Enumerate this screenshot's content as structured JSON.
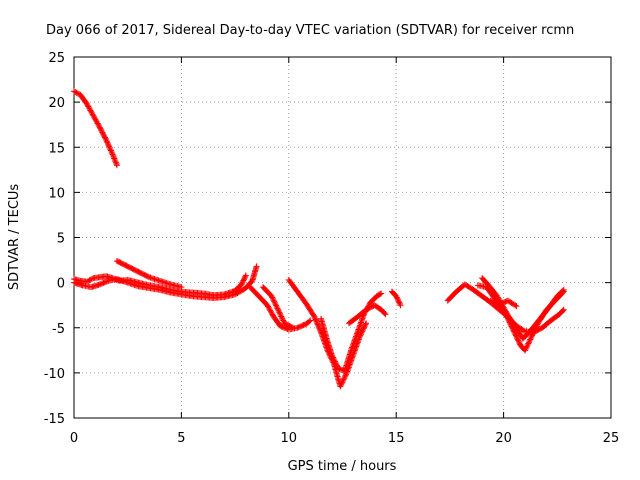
{
  "chart_data": {
    "type": "scatter",
    "title": "Day 066 of 2017, Sidereal Day-to-day VTEC variation (SDTVAR) for receiver rcmn",
    "xlabel": "GPS time / hours",
    "ylabel": "SDTVAR / TECUs",
    "xlim": [
      0,
      25
    ],
    "ylim": [
      -15,
      25
    ],
    "xticks": [
      0,
      5,
      10,
      15,
      20,
      25
    ],
    "yticks": [
      -15,
      -10,
      -5,
      0,
      5,
      10,
      15,
      20,
      25
    ],
    "grid": true,
    "marker": "+",
    "series": [
      {
        "name": "seg1",
        "color": "#ff0000",
        "points": [
          [
            0.0,
            21.2
          ],
          [
            0.3,
            20.8
          ],
          [
            0.6,
            19.8
          ],
          [
            0.9,
            18.5
          ],
          [
            1.2,
            17.2
          ],
          [
            1.5,
            15.8
          ],
          [
            1.8,
            14.2
          ],
          [
            2.0,
            13.0
          ]
        ]
      },
      {
        "name": "seg2",
        "color": "#ff0000",
        "points": [
          [
            0.0,
            0.4
          ],
          [
            0.3,
            0.2
          ],
          [
            0.6,
            0.1
          ],
          [
            0.9,
            0.5
          ],
          [
            1.2,
            0.6
          ],
          [
            1.5,
            0.7
          ],
          [
            1.8,
            0.5
          ],
          [
            2.1,
            0.2
          ],
          [
            2.5,
            0.3
          ],
          [
            3.0,
            0.0
          ],
          [
            3.5,
            -0.3
          ],
          [
            4.0,
            -0.5
          ],
          [
            4.5,
            -0.8
          ],
          [
            5.0,
            -1.0
          ],
          [
            5.5,
            -1.1
          ],
          [
            6.0,
            -1.2
          ],
          [
            6.5,
            -1.4
          ],
          [
            7.0,
            -1.3
          ],
          [
            7.5,
            -0.9
          ],
          [
            7.8,
            -0.2
          ],
          [
            8.0,
            0.8
          ]
        ]
      },
      {
        "name": "seg3",
        "color": "#ff0000",
        "points": [
          [
            0.0,
            0.0
          ],
          [
            0.4,
            -0.3
          ],
          [
            0.8,
            -0.5
          ],
          [
            1.2,
            -0.2
          ],
          [
            1.6,
            0.2
          ],
          [
            2.0,
            0.4
          ],
          [
            2.5,
            0.0
          ],
          [
            3.0,
            -0.4
          ],
          [
            3.5,
            -0.6
          ],
          [
            4.0,
            -0.8
          ],
          [
            4.5,
            -1.1
          ],
          [
            5.0,
            -1.3
          ],
          [
            5.5,
            -1.5
          ],
          [
            6.0,
            -1.6
          ],
          [
            6.5,
            -1.7
          ],
          [
            7.0,
            -1.6
          ],
          [
            7.5,
            -1.3
          ],
          [
            8.0,
            -0.6
          ],
          [
            8.3,
            0.2
          ],
          [
            8.5,
            1.8
          ]
        ]
      },
      {
        "name": "seg4",
        "color": "#ff0000",
        "points": [
          [
            2.0,
            2.4
          ],
          [
            2.5,
            1.8
          ],
          [
            3.0,
            1.2
          ],
          [
            3.5,
            0.6
          ],
          [
            4.0,
            0.2
          ],
          [
            4.5,
            -0.2
          ],
          [
            5.0,
            -0.5
          ]
        ]
      },
      {
        "name": "seg5",
        "color": "#ff0000",
        "points": [
          [
            8.2,
            -0.5
          ],
          [
            8.6,
            -1.5
          ],
          [
            9.0,
            -2.5
          ],
          [
            9.3,
            -3.8
          ],
          [
            9.6,
            -4.8
          ],
          [
            10.0,
            -5.2
          ],
          [
            10.4,
            -5.0
          ],
          [
            10.8,
            -4.6
          ],
          [
            11.0,
            -4.2
          ]
        ]
      },
      {
        "name": "seg6",
        "color": "#ff0000",
        "points": [
          [
            8.8,
            -0.5
          ],
          [
            9.2,
            -1.5
          ],
          [
            9.5,
            -3.0
          ],
          [
            9.8,
            -4.5
          ],
          [
            10.2,
            -5.0
          ]
        ]
      },
      {
        "name": "seg7",
        "color": "#ff0000",
        "points": [
          [
            10.0,
            0.3
          ],
          [
            10.4,
            -1.0
          ],
          [
            10.8,
            -2.3
          ],
          [
            11.2,
            -3.8
          ],
          [
            11.5,
            -5.5
          ],
          [
            11.8,
            -7.5
          ],
          [
            12.1,
            -9.0
          ],
          [
            12.4,
            -11.5
          ],
          [
            12.7,
            -10.0
          ],
          [
            13.0,
            -8.0
          ],
          [
            13.3,
            -6.0
          ],
          [
            13.6,
            -4.5
          ]
        ]
      },
      {
        "name": "seg8",
        "color": "#ff0000",
        "points": [
          [
            11.5,
            -4.0
          ],
          [
            11.8,
            -6.5
          ],
          [
            12.0,
            -8.0
          ],
          [
            12.3,
            -9.5
          ],
          [
            12.6,
            -9.8
          ],
          [
            12.9,
            -7.5
          ],
          [
            13.2,
            -5.5
          ],
          [
            13.5,
            -3.5
          ],
          [
            13.8,
            -2.2
          ],
          [
            14.1,
            -1.5
          ],
          [
            14.3,
            -1.2
          ]
        ]
      },
      {
        "name": "seg9",
        "color": "#ff0000",
        "points": [
          [
            12.8,
            -4.5
          ],
          [
            13.2,
            -3.8
          ],
          [
            13.6,
            -3.0
          ],
          [
            14.0,
            -2.5
          ],
          [
            14.3,
            -3.0
          ],
          [
            14.5,
            -3.5
          ]
        ]
      },
      {
        "name": "seg10",
        "color": "#ff0000",
        "points": [
          [
            14.8,
            -1.0
          ],
          [
            15.0,
            -1.5
          ],
          [
            15.2,
            -2.5
          ]
        ]
      },
      {
        "name": "seg11",
        "color": "#ff0000",
        "points": [
          [
            17.4,
            -2.0
          ],
          [
            17.8,
            -1.0
          ],
          [
            18.2,
            -0.2
          ],
          [
            18.6,
            -0.8
          ],
          [
            19.0,
            -1.5
          ],
          [
            19.4,
            -2.2
          ],
          [
            19.8,
            -3.0
          ],
          [
            20.2,
            -3.8
          ],
          [
            20.6,
            -4.8
          ],
          [
            21.0,
            -5.4
          ],
          [
            21.4,
            -5.5
          ],
          [
            21.8,
            -5.0
          ],
          [
            22.2,
            -4.2
          ],
          [
            22.6,
            -3.5
          ],
          [
            22.8,
            -3.0
          ]
        ]
      },
      {
        "name": "seg12",
        "color": "#ff0000",
        "points": [
          [
            18.8,
            -0.3
          ],
          [
            19.2,
            -0.5
          ],
          [
            19.6,
            -1.8
          ],
          [
            20.0,
            -3.0
          ],
          [
            20.4,
            -5.0
          ],
          [
            20.8,
            -7.0
          ],
          [
            21.0,
            -7.5
          ],
          [
            21.3,
            -6.0
          ],
          [
            21.6,
            -4.5
          ],
          [
            22.0,
            -3.0
          ],
          [
            22.4,
            -2.0
          ],
          [
            22.8,
            -1.0
          ]
        ]
      },
      {
        "name": "seg13",
        "color": "#ff0000",
        "points": [
          [
            19.0,
            0.5
          ],
          [
            19.3,
            -0.3
          ],
          [
            19.7,
            -1.5
          ],
          [
            20.1,
            -3.2
          ],
          [
            20.5,
            -4.8
          ],
          [
            20.9,
            -6.2
          ],
          [
            21.3,
            -5.2
          ],
          [
            21.7,
            -4.0
          ],
          [
            22.1,
            -2.8
          ],
          [
            22.5,
            -1.5
          ],
          [
            22.8,
            -0.8
          ]
        ]
      },
      {
        "name": "seg14",
        "color": "#ff0000",
        "points": [
          [
            19.4,
            -2.0
          ],
          [
            19.8,
            -2.4
          ],
          [
            20.2,
            -2.0
          ],
          [
            20.6,
            -2.6
          ]
        ]
      }
    ]
  }
}
